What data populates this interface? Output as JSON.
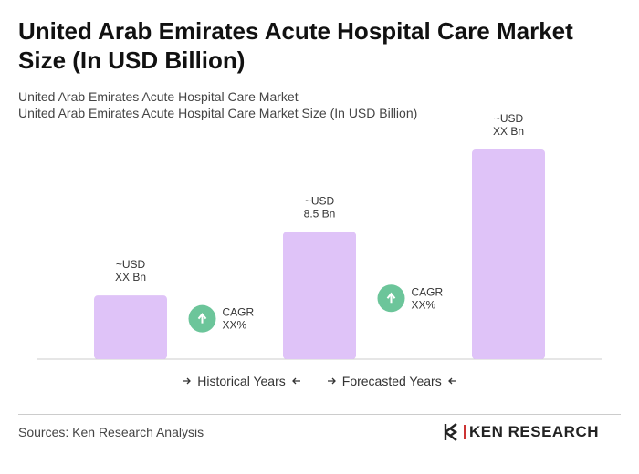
{
  "header": {
    "title": "United Arab Emirates Acute Hospital Care Market Size (In USD Billion)",
    "subtitle": [
      "United Arab Emirates Acute Hospital Care Market",
      "United Arab Emirates Acute Hospital Care Market Size (In USD Billion)"
    ]
  },
  "chart_data": {
    "type": "bar",
    "values": [
      4.25,
      8.5,
      14
    ],
    "value_labels": [
      "~USD XX Bn",
      "~USD 8.5 Bn",
      "~USD XX Bn"
    ],
    "color": "#dfc3f8",
    "annotations": [
      {
        "label": "CAGR",
        "value": "XX%"
      },
      {
        "label": "CAGR",
        "value": "XX%"
      }
    ]
  },
  "legend": [
    "Historical Years",
    "Forecasted Years"
  ],
  "footer": {
    "source": "Sources: Ken Research Analysis",
    "logo": "KEN RESEARCH"
  }
}
